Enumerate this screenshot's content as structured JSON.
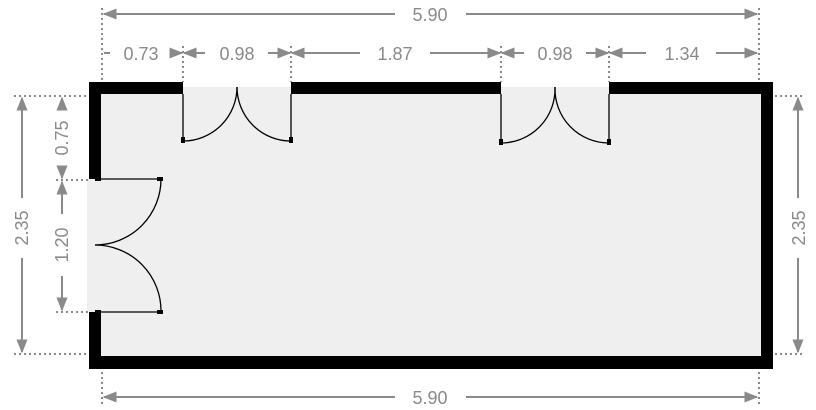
{
  "plan": {
    "top_total": "5.90",
    "bottom_total": "5.90",
    "top_segments": [
      "0.73",
      "0.98",
      "1.87",
      "0.98",
      "1.34"
    ],
    "left_total": "2.35",
    "left_offset": "0.75",
    "left_door": "1.20",
    "right_total": "2.35",
    "colors": {
      "wall": "#000000",
      "floor": "#efefef",
      "dimension": "#8a8a8a"
    }
  }
}
